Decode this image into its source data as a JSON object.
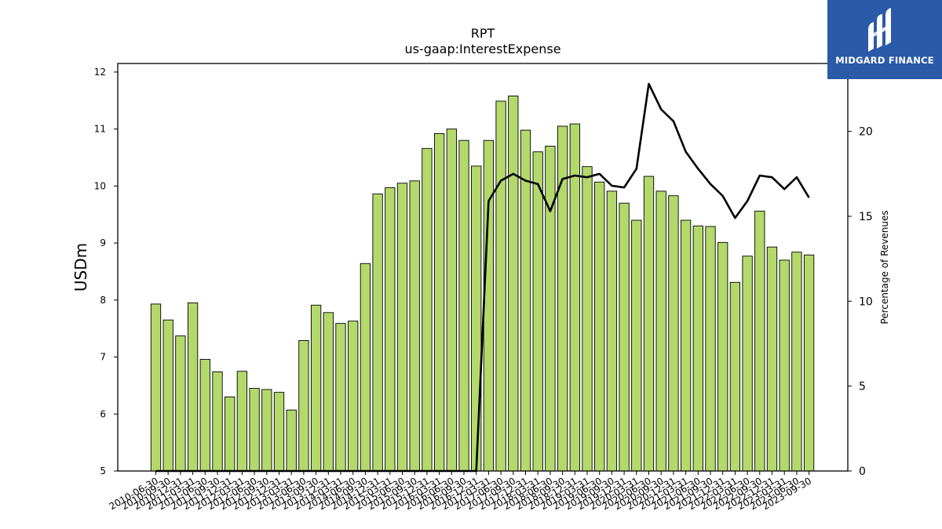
{
  "title": "RPT",
  "subtitle": "us-gaap:InterestExpense",
  "logo": {
    "text": "MIDGARD FINANCE",
    "bg_color": "#2b5aa8"
  },
  "chart_data": {
    "type": "bar",
    "title": "RPT",
    "subtitle": "us-gaap:InterestExpense",
    "ylabel": "USDm",
    "ylabel_right": "Percentage of Revenues",
    "ylim": [
      5,
      12.15
    ],
    "ylim_right": [
      0,
      24
    ],
    "yticks": [
      5,
      6,
      7,
      8,
      9,
      10,
      11,
      12
    ],
    "yticks_right": [
      0,
      5,
      10,
      15,
      20
    ],
    "bar_color": "#b3d96b",
    "line_color": "#000000",
    "grid": false,
    "categories": [
      "2010-06-30",
      "2010-09-30",
      "2010-12-31",
      "2011-03-31",
      "2011-06-30",
      "2011-09-30",
      "2011-12-31",
      "2012-03-31",
      "2012-06-30",
      "2012-09-30",
      "2012-12-31",
      "2013-03-31",
      "2013-06-30",
      "2013-09-30",
      "2013-12-31",
      "2014-03-31",
      "2014-06-30",
      "2014-09-30",
      "2014-12-31",
      "2015-03-31",
      "2015-06-30",
      "2015-09-30",
      "2015-12-31",
      "2016-03-31",
      "2016-06-30",
      "2016-09-30",
      "2016-12-31",
      "2017-03-31",
      "2017-06-30",
      "2017-09-30",
      "2017-12-31",
      "2018-03-31",
      "2018-06-30",
      "2018-09-30",
      "2018-12-31",
      "2019-03-31",
      "2019-06-30",
      "2019-09-30",
      "2019-12-31",
      "2020-03-31",
      "2020-06-30",
      "2020-09-30",
      "2020-12-31",
      "2021-03-31",
      "2021-06-30",
      "2021-09-30",
      "2021-12-31",
      "2022-03-31",
      "2022-06-30",
      "2022-09-30",
      "2022-12-31",
      "2023-03-31",
      "2023-06-30",
      "2023-09-30"
    ],
    "series": [
      {
        "name": "InterestExpense",
        "type": "bar",
        "axis": "left",
        "values": [
          7.93,
          7.65,
          7.37,
          7.95,
          6.96,
          6.74,
          6.3,
          6.75,
          6.45,
          6.43,
          6.38,
          6.07,
          7.29,
          7.91,
          7.78,
          7.59,
          7.63,
          8.64,
          9.86,
          9.97,
          10.05,
          10.09,
          10.66,
          10.92,
          11.0,
          10.8,
          10.35,
          10.8,
          11.49,
          11.58,
          10.98,
          10.6,
          10.7,
          11.05,
          11.09,
          10.34,
          10.07,
          9.91,
          9.7,
          9.4,
          10.17,
          9.91,
          9.83,
          9.4,
          9.3,
          9.29,
          9.01,
          8.31,
          8.77,
          9.56,
          8.93,
          8.7,
          8.84,
          8.79
        ]
      },
      {
        "name": "Percentage of Revenues",
        "type": "line",
        "axis": "right",
        "values": [
          0,
          0,
          0,
          0,
          0,
          0,
          0,
          0,
          0,
          0,
          0,
          0,
          0,
          0,
          0,
          0,
          0,
          0,
          0,
          0,
          0,
          0,
          0,
          0,
          0,
          0,
          0,
          15.9,
          17.1,
          17.5,
          17.1,
          16.9,
          15.3,
          17.2,
          17.4,
          17.3,
          17.5,
          16.8,
          16.7,
          17.8,
          22.8,
          21.3,
          20.6,
          18.8,
          17.8,
          16.9,
          16.2,
          14.9,
          15.9,
          17.4,
          17.3,
          16.6,
          17.3,
          16.1
        ]
      }
    ]
  }
}
